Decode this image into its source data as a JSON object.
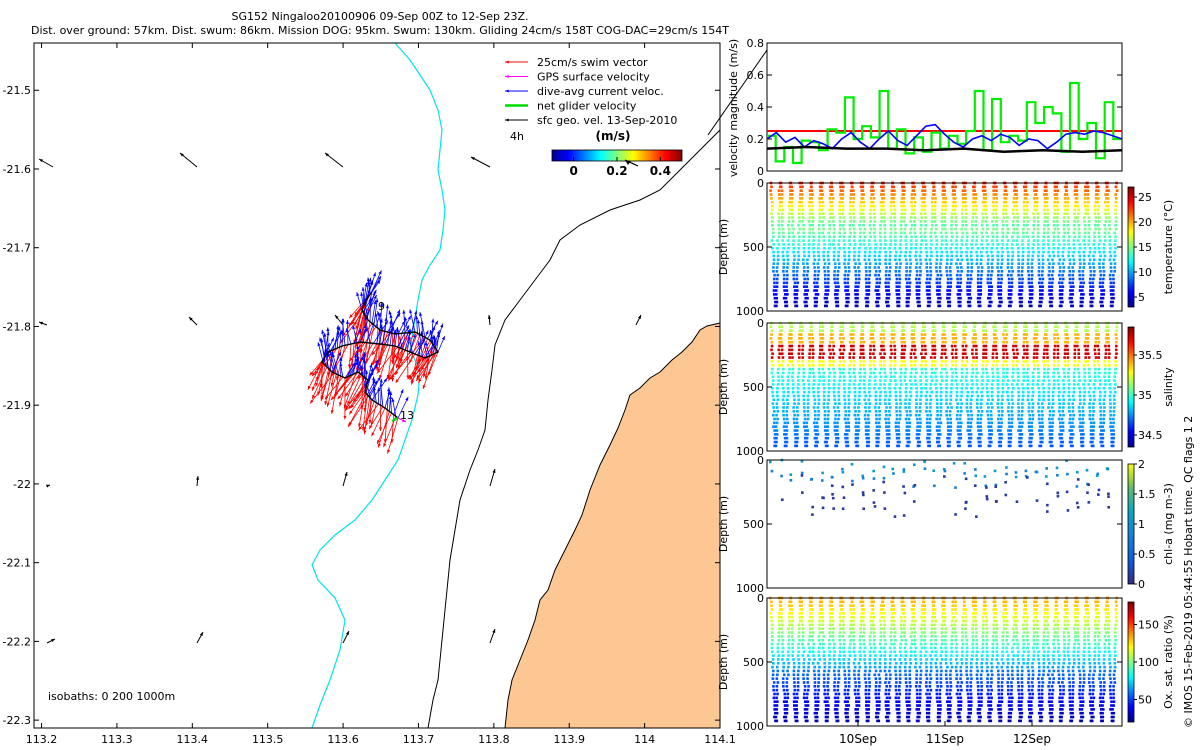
{
  "header": {
    "title_line1": "SG152 Ningaloo20100906 09-Sep 00Z to 12-Sep 23Z.",
    "title_line2": "Dist. over ground: 57km. Dist. swum: 86km. Mission DOG: 95km. Swum: 130km. Gliding 24cm/s 158T COG-DAC=29cm/s 154T"
  },
  "legend": {
    "items": [
      {
        "label": "25cm/s swim vector",
        "color": "#ff0000"
      },
      {
        "label": "GPS surface velocity",
        "color": "#ff00ff"
      },
      {
        "label": "dive-avg current veloc.",
        "color": "#0000ff"
      },
      {
        "label": "net glider velocity",
        "color": "#00dd00"
      },
      {
        "label": "sfc geo. vel. 13-Sep-2010",
        "color": "#000000"
      }
    ],
    "interval_label": "4h"
  },
  "colorbar": {
    "title": "(m/s)",
    "ticks": [
      "0",
      "0.2",
      "0.4"
    ],
    "range": [
      -0.1,
      0.5
    ]
  },
  "map_labels": {
    "isobaths": "isobaths: 0   200  1000m",
    "point_start": "9",
    "point_end": "13"
  },
  "footer": {
    "credit": "© IMOS 15-Feb-2019 05:44:55 Hobart time. QC flags 1  2"
  },
  "colors": {
    "land": "#fdc794",
    "coast_contour": "#00e6e6",
    "isobath": "#000000"
  },
  "chart_data": [
    {
      "type": "map",
      "x_ticks": [
        "113.2",
        "113.3",
        "113.4",
        "113.5",
        "113.6",
        "113.7",
        "113.8",
        "113.9",
        "114",
        "114.1"
      ],
      "x_values": [
        113.2,
        113.3,
        113.4,
        113.5,
        113.6,
        113.7,
        113.8,
        113.9,
        114.0,
        114.1
      ],
      "xlim": [
        113.19,
        114.1
      ],
      "y_ticks": [
        "-21.5",
        "-21.6",
        "-21.7",
        "-21.8",
        "-21.9",
        "-22",
        "-22.1",
        "-22.2",
        "-22.3"
      ],
      "y_values": [
        -21.5,
        -21.6,
        -21.7,
        -21.8,
        -21.9,
        -22.0,
        -22.1,
        -22.2,
        -22.3
      ],
      "ylim": [
        -22.31,
        -21.44
      ]
    },
    {
      "type": "line",
      "ylabel": "velocity magnitude (m/s)",
      "y_ticks": [
        "0",
        "0.2",
        "0.4",
        "0.6",
        "0.8"
      ],
      "y_values": [
        0,
        0.2,
        0.4,
        0.6,
        0.8
      ],
      "ylim": [
        0,
        0.8
      ],
      "series": [
        {
          "name": "25cm/s swim vector",
          "color": "#ff0000",
          "values": [
            0.25,
            0.25
          ]
        },
        {
          "name": "net glider velocity",
          "color": "#00ee00",
          "values": [
            0.22,
            0.06,
            0.15,
            0.05,
            0.19,
            0.18,
            0.13,
            0.26,
            0.24,
            0.46,
            0.2,
            0.28,
            0.21,
            0.5,
            0.14,
            0.26,
            0.11,
            0.21,
            0.12,
            0.24,
            0.14,
            0.22,
            0.17,
            0.25,
            0.5,
            0.13,
            0.45,
            0.18,
            0.22,
            0.19,
            0.43,
            0.3,
            0.4,
            0.36,
            0.12,
            0.55,
            0.2,
            0.3,
            0.08,
            0.43,
            0.2
          ]
        },
        {
          "name": "dive-avg current veloc.",
          "color": "#0000ff",
          "values": [
            0.2,
            0.24,
            0.18,
            0.21,
            0.15,
            0.19,
            0.17,
            0.14,
            0.2,
            0.24,
            0.18,
            0.14,
            0.2,
            0.25,
            0.19,
            0.16,
            0.22,
            0.28,
            0.29,
            0.23,
            0.18,
            0.15,
            0.2,
            0.22,
            0.19,
            0.23,
            0.21,
            0.16,
            0.2,
            0.19,
            0.14,
            0.18,
            0.23,
            0.24,
            0.23,
            0.25,
            0.24,
            0.22,
            0.2
          ]
        },
        {
          "name": "DOG",
          "color": "#000000",
          "values": [
            0.14,
            0.15,
            0.14,
            0.14,
            0.13,
            0.14,
            0.12,
            0.13,
            0.12,
            0.13
          ]
        }
      ]
    },
    {
      "type": "heatmap",
      "ylabel": "Depth (m)",
      "cbar_label": "temperature (°C)",
      "y_ticks": [
        "0",
        "500",
        "1000"
      ],
      "ylim": [
        1000,
        0
      ],
      "cbar_ticks": [
        "5",
        "10",
        "15",
        "20",
        "25"
      ],
      "cbar_range": [
        3,
        27
      ]
    },
    {
      "type": "heatmap",
      "ylabel": "Depth (m)",
      "cbar_label": "salinity",
      "y_ticks": [
        "0",
        "500",
        "1000"
      ],
      "ylim": [
        1000,
        0
      ],
      "cbar_ticks": [
        "34.5",
        "35",
        "35.5"
      ],
      "cbar_range": [
        34.35,
        35.85
      ]
    },
    {
      "type": "heatmap",
      "ylabel": "Depth (m)",
      "cbar_label": "chl-a (mg m-3)",
      "y_ticks": [
        "0",
        "500",
        "1000"
      ],
      "ylim": [
        1000,
        0
      ],
      "cbar_ticks": [
        "0",
        "0.5",
        "1",
        "1.5",
        "2"
      ],
      "cbar_range": [
        0,
        2
      ]
    },
    {
      "type": "heatmap",
      "ylabel": "Depth (m)",
      "cbar_label": "Ox. sat. ratio (%)",
      "y_ticks": [
        "0",
        "500",
        "1000"
      ],
      "ylim": [
        1000,
        0
      ],
      "cbar_ticks": [
        "50",
        "100",
        "150"
      ],
      "cbar_range": [
        20,
        180
      ],
      "x_ticks": [
        "10Sep",
        "11Sep",
        "12Sep"
      ]
    }
  ]
}
